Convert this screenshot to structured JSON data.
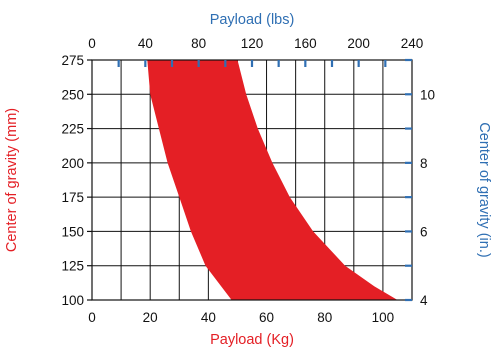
{
  "chart_data": {
    "type": "area",
    "xlabel": "Payload (Kg)",
    "ylabel": "Center of gravity (mm)",
    "x2label": "Payload (lbs)",
    "y2label": "Center of gravity (in.)",
    "xlim": [
      0,
      110
    ],
    "ylim": [
      100,
      275
    ],
    "x2lim": [
      0,
      240
    ],
    "y2lim": [
      4,
      11
    ],
    "xticks": [
      0,
      20,
      40,
      60,
      80,
      100
    ],
    "yticks": [
      100,
      125,
      150,
      175,
      200,
      225,
      250,
      275
    ],
    "x2ticks": [
      0,
      40,
      80,
      120,
      160,
      200,
      240
    ],
    "y2ticks": [
      4,
      6,
      8,
      10
    ],
    "grid": true,
    "region": {
      "lower": [
        {
          "x": 19,
          "y": 275
        },
        {
          "x": 20,
          "y": 250
        },
        {
          "x": 23,
          "y": 225
        },
        {
          "x": 26,
          "y": 200
        },
        {
          "x": 30,
          "y": 175
        },
        {
          "x": 34,
          "y": 150
        },
        {
          "x": 39,
          "y": 125
        },
        {
          "x": 48,
          "y": 100
        }
      ],
      "upper": [
        {
          "x": 105,
          "y": 100
        },
        {
          "x": 97,
          "y": 110
        },
        {
          "x": 87,
          "y": 125
        },
        {
          "x": 76,
          "y": 150
        },
        {
          "x": 68,
          "y": 175
        },
        {
          "x": 62,
          "y": 200
        },
        {
          "x": 57,
          "y": 225
        },
        {
          "x": 53,
          "y": 250
        },
        {
          "x": 50,
          "y": 275
        }
      ]
    },
    "colors": {
      "fill": "#e41f25",
      "left_axis": "#e41f25",
      "bottom_axis": "#e41f25",
      "top_axis": "#2f6fb3",
      "right_axis": "#2f6fb3",
      "grid": "#111111"
    }
  }
}
